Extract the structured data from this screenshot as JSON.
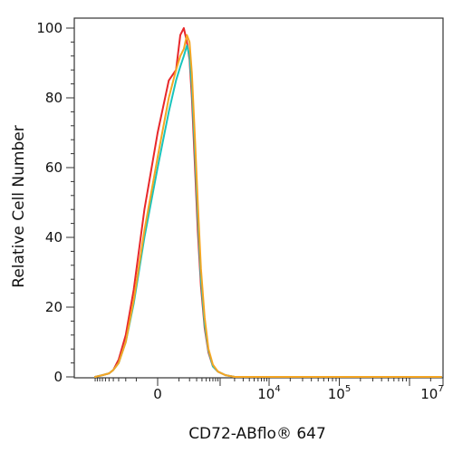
{
  "chart_data": {
    "type": "line",
    "title": "",
    "xlabel": "CD72-ABflo® 647",
    "ylabel": "Relative Cell Number",
    "x_scale": "biexponential",
    "xlim": [
      -1000,
      10000000
    ],
    "ylim": [
      0,
      100
    ],
    "y_ticks": [
      0,
      20,
      40,
      60,
      80,
      100
    ],
    "x_tick_labels": [
      {
        "value": 0,
        "base": "0",
        "exp": ""
      },
      {
        "value": 10000,
        "base": "10",
        "exp": "4"
      },
      {
        "value": 100000,
        "base": "10",
        "exp": "5"
      },
      {
        "value": 10000000,
        "base": "10",
        "exp": "7"
      }
    ],
    "grid": false,
    "legend": "none",
    "series": [
      {
        "color": "#e8272a",
        "x": [
          -1000,
          -700,
          -500,
          -400,
          -300,
          -200,
          -120,
          -50,
          0,
          40,
          80,
          110,
          140,
          170,
          200,
          230,
          270,
          320,
          380,
          460,
          560,
          700,
          900,
          1300,
          2000,
          4000,
          10000,
          100000,
          10000000
        ],
        "y": [
          0,
          0.5,
          1,
          2,
          5,
          12,
          25,
          48,
          70,
          85,
          88,
          98,
          100,
          96,
          91,
          80,
          62,
          42,
          26,
          14,
          7,
          3,
          1.5,
          0.5,
          0,
          0,
          0,
          0,
          0
        ]
      },
      {
        "color": "#19c4bc",
        "x": [
          -1000,
          -700,
          -500,
          -400,
          -300,
          -200,
          -120,
          -50,
          0,
          40,
          80,
          110,
          140,
          170,
          200,
          230,
          270,
          320,
          380,
          460,
          560,
          700,
          900,
          1300,
          2000,
          4000,
          10000,
          100000,
          10000000
        ],
        "y": [
          0,
          0.5,
          1,
          2,
          4,
          10,
          21,
          40,
          60,
          76,
          85,
          89,
          92,
          95,
          92,
          83,
          66,
          46,
          28,
          15,
          7.5,
          3,
          1.5,
          0.5,
          0,
          0,
          0,
          0,
          0
        ]
      },
      {
        "color": "#f5a623",
        "x": [
          -1000,
          -700,
          -500,
          -400,
          -300,
          -200,
          -120,
          -50,
          0,
          40,
          80,
          110,
          140,
          170,
          200,
          230,
          270,
          320,
          380,
          460,
          560,
          700,
          900,
          1300,
          2000,
          4000,
          10000,
          100000,
          10000000
        ],
        "y": [
          0,
          0.5,
          1,
          2,
          4,
          10,
          22,
          42,
          63,
          80,
          88,
          92,
          94,
          98,
          96,
          87,
          70,
          50,
          31,
          17,
          8,
          3.5,
          1.5,
          0.5,
          0,
          0,
          0,
          0,
          0
        ]
      }
    ]
  }
}
